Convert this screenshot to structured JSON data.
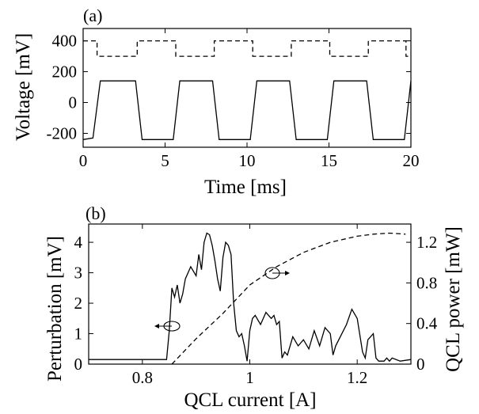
{
  "chart_data": [
    {
      "panel": "(a)",
      "type": "line",
      "xlabel": "Time [ms]",
      "ylabel": "Voltage [mV]",
      "xlim": [
        0,
        20
      ],
      "ylim": [
        -290,
        480
      ],
      "xticks": [
        "0",
        "5",
        "10",
        "15",
        "20"
      ],
      "yticks": [
        "-200",
        "0",
        "200",
        "400"
      ],
      "series": [
        {
          "style": "dashed",
          "color": "#000000",
          "x": [
            0,
            0.85,
            0.85,
            3.3,
            3.3,
            5.65,
            5.65,
            8.0,
            8.0,
            10.35,
            10.35,
            12.7,
            12.7,
            15.05,
            15.05,
            17.4,
            17.4,
            19.7,
            19.7,
            20
          ],
          "y": [
            400,
            400,
            300,
            300,
            400,
            400,
            300,
            300,
            400,
            400,
            300,
            300,
            400,
            400,
            300,
            300,
            400,
            400,
            300,
            300
          ]
        },
        {
          "style": "solid",
          "color": "#000000",
          "x": [
            0,
            0.6,
            1.05,
            3.2,
            3.6,
            5.5,
            5.9,
            7.9,
            8.3,
            10.2,
            10.6,
            12.6,
            13.0,
            14.9,
            15.3,
            17.3,
            17.7,
            19.6,
            20.0
          ],
          "y": [
            -240,
            -230,
            140,
            140,
            -240,
            -240,
            140,
            140,
            -240,
            -240,
            140,
            140,
            -240,
            -240,
            140,
            140,
            -240,
            -240,
            140
          ]
        }
      ]
    },
    {
      "panel": "(b)",
      "type": "line",
      "xlabel": "QCL current [A]",
      "ylabel": "Perturbation [mV]",
      "y2label": "QCL power [mW]",
      "xlim": [
        0.7,
        1.3
      ],
      "ylim": [
        0,
        4.6
      ],
      "y2lim": [
        0,
        1.38
      ],
      "xticks": [
        "0.8",
        "1",
        "1.2"
      ],
      "yticks": [
        "0",
        "1",
        "2",
        "3",
        "4"
      ],
      "y2ticks": [
        "0",
        "0.4",
        "0.8",
        "1.2"
      ],
      "series": [
        {
          "axis": "left",
          "style": "solid",
          "color": "#000000",
          "x": [
            0.7,
            0.8,
            0.845,
            0.85,
            0.855,
            0.86,
            0.865,
            0.87,
            0.875,
            0.88,
            0.885,
            0.89,
            0.9,
            0.905,
            0.91,
            0.915,
            0.92,
            0.925,
            0.93,
            0.935,
            0.94,
            0.945,
            0.95,
            0.955,
            0.96,
            0.965,
            0.97,
            0.975,
            0.98,
            0.985,
            0.99,
            0.995,
            1.0,
            1.005,
            1.01,
            1.02,
            1.03,
            1.035,
            1.04,
            1.045,
            1.05,
            1.055,
            1.06,
            1.065,
            1.07,
            1.08,
            1.09,
            1.1,
            1.11,
            1.12,
            1.13,
            1.14,
            1.15,
            1.155,
            1.16,
            1.18,
            1.19,
            1.2,
            1.21,
            1.215,
            1.22,
            1.23,
            1.235,
            1.24,
            1.25,
            1.255,
            1.26,
            1.265,
            1.28,
            1.3
          ],
          "y": [
            0.15,
            0.15,
            0.15,
            1.1,
            2.5,
            2.2,
            2.6,
            2.0,
            2.3,
            2.8,
            3.0,
            3.2,
            2.9,
            3.6,
            3.1,
            4.0,
            4.3,
            4.25,
            3.9,
            3.4,
            2.8,
            2.4,
            3.5,
            4.0,
            3.9,
            3.6,
            2.0,
            1.1,
            0.9,
            1.0,
            0.6,
            0.1,
            1.1,
            1.5,
            1.6,
            1.3,
            1.7,
            1.6,
            1.5,
            1.6,
            1.3,
            1.4,
            0.2,
            0.4,
            0.3,
            0.9,
            0.6,
            0.8,
            0.5,
            1.1,
            0.6,
            1.2,
            1.0,
            0.3,
            0.6,
            1.3,
            1.8,
            1.5,
            0.4,
            0.2,
            0.8,
            1.0,
            0.2,
            0.1,
            0.1,
            0.2,
            0.1,
            0.2,
            0.1,
            0.15
          ]
        },
        {
          "axis": "right",
          "style": "dashed",
          "color": "#000000",
          "x": [
            0.855,
            0.9,
            0.95,
            1.0,
            1.05,
            1.1,
            1.15,
            1.2,
            1.23,
            1.26,
            1.29
          ],
          "y": [
            0.0,
            0.25,
            0.5,
            0.78,
            0.96,
            1.1,
            1.2,
            1.26,
            1.28,
            1.29,
            1.28
          ]
        }
      ]
    }
  ]
}
